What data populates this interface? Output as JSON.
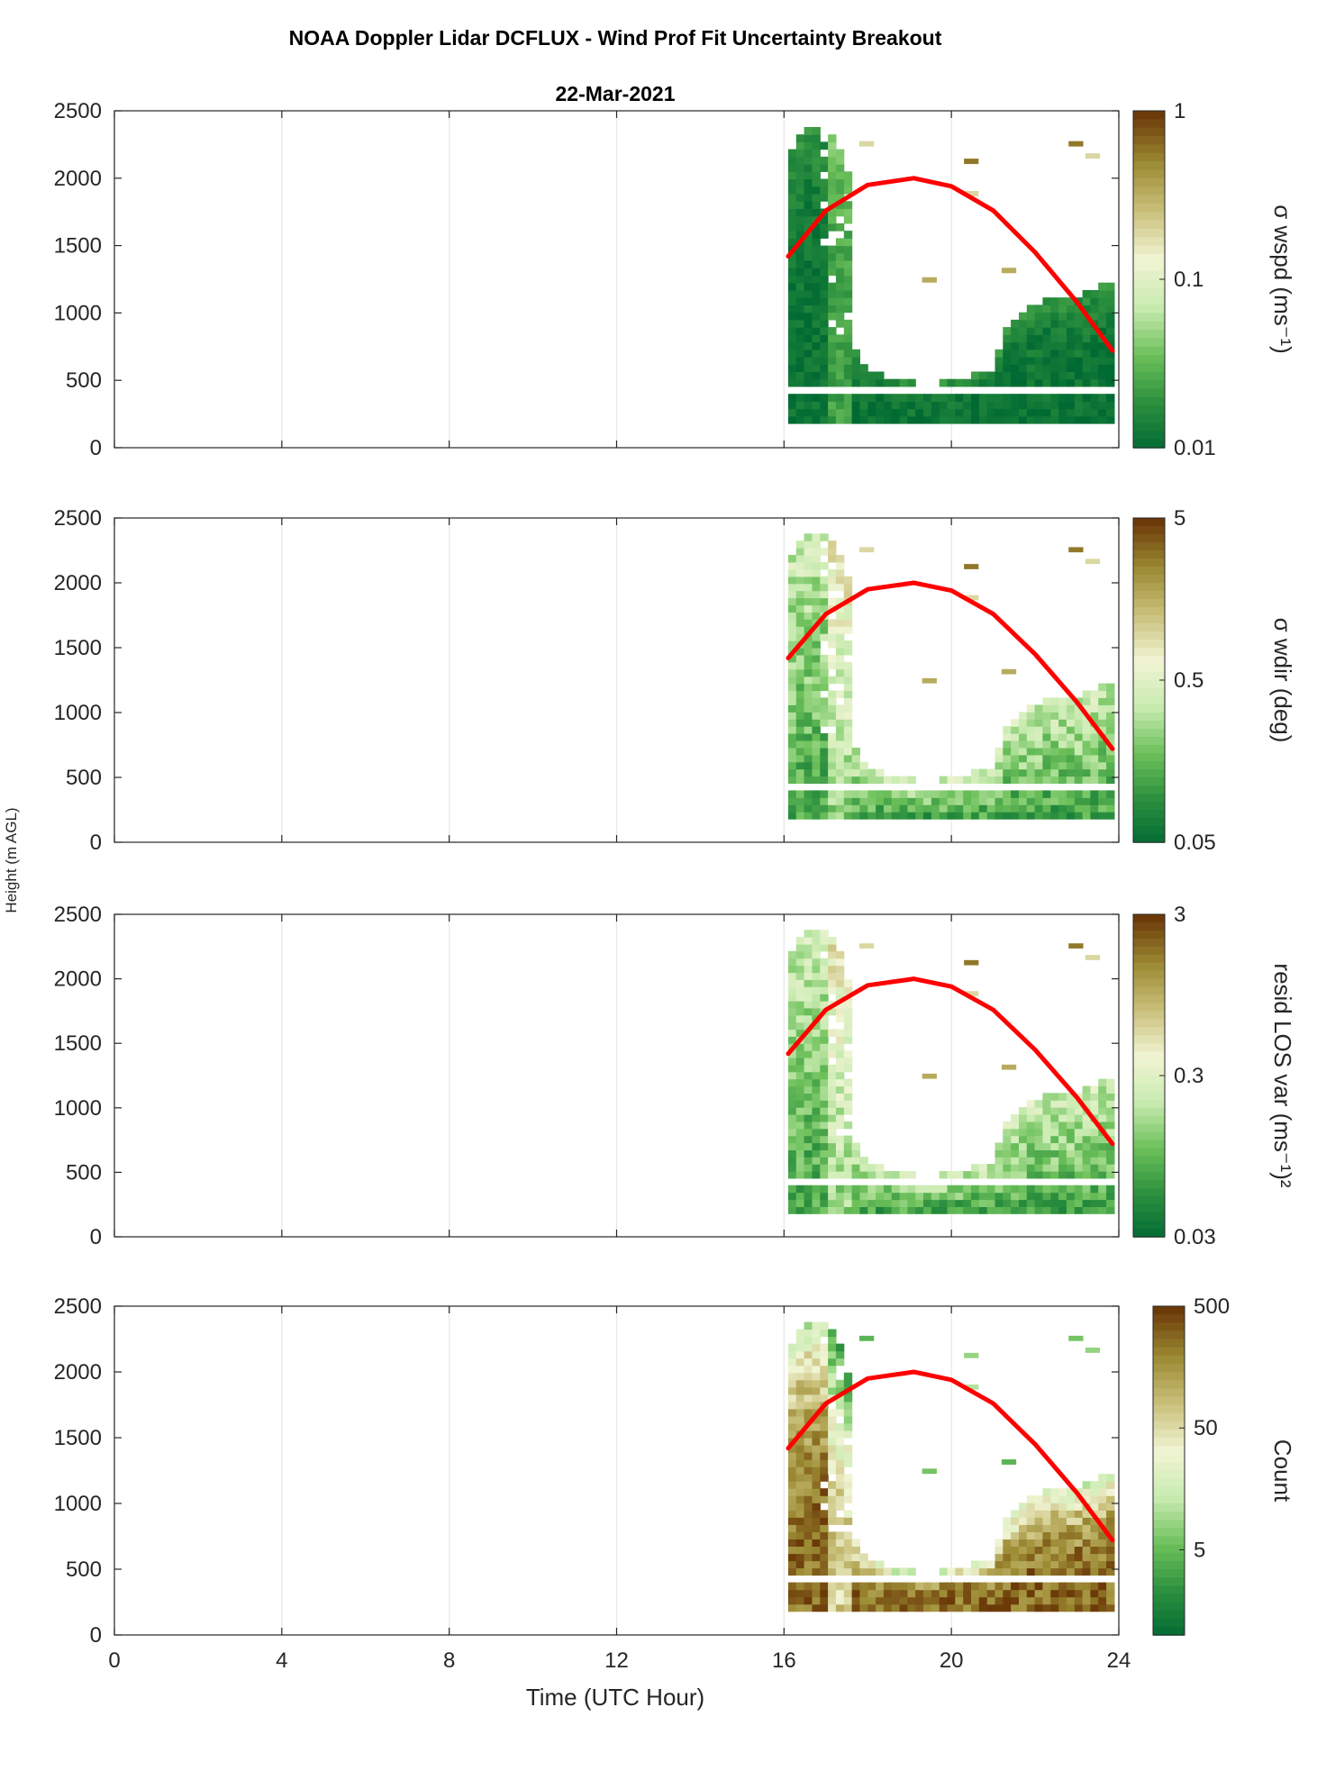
{
  "figure": {
    "title": "NOAA Doppler Lidar DCFLUX - Wind Prof Fit Uncertainty Breakout",
    "date": "22-Mar-2021",
    "ylabel": "Height (m AGL)",
    "xlabel": "Time (UTC Hour)"
  },
  "chart_data": [
    {
      "type": "heatmap",
      "name": "sigma-wspd",
      "colorbar_label": "σ wspd (ms⁻¹)",
      "colorbar_ticks": [
        "0.01",
        "0.1",
        "1"
      ],
      "colorbar_scale": "log",
      "colorbar_range": [
        0.01,
        1
      ],
      "x_ticks": [
        "0",
        "4",
        "8",
        "12",
        "16",
        "20",
        "24"
      ],
      "y_ticks": [
        "0",
        "500",
        "1000",
        "1500",
        "2000",
        "2500"
      ],
      "xlim": [
        0,
        24
      ],
      "ylim": [
        0,
        2500
      ],
      "value_profile": "low",
      "grid": true
    },
    {
      "type": "heatmap",
      "name": "sigma-wdir",
      "colorbar_label": "σ wdir (deg)",
      "colorbar_ticks": [
        "0.05",
        "0.5",
        "5"
      ],
      "colorbar_scale": "log",
      "colorbar_range": [
        0.05,
        5
      ],
      "x_ticks": [
        "0",
        "4",
        "8",
        "12",
        "16",
        "20",
        "24"
      ],
      "y_ticks": [
        "0",
        "500",
        "1000",
        "1500",
        "2000",
        "2500"
      ],
      "xlim": [
        0,
        24
      ],
      "ylim": [
        0,
        2500
      ],
      "value_profile": "mid",
      "grid": true
    },
    {
      "type": "heatmap",
      "name": "resid-los-var",
      "colorbar_label": "resid LOS var (ms⁻¹)²",
      "colorbar_ticks": [
        "0.03",
        "0.3",
        "3"
      ],
      "colorbar_scale": "log",
      "colorbar_range": [
        0.03,
        3
      ],
      "x_ticks": [
        "0",
        "4",
        "8",
        "12",
        "16",
        "20",
        "24"
      ],
      "y_ticks": [
        "0",
        "500",
        "1000",
        "1500",
        "2000",
        "2500"
      ],
      "xlim": [
        0,
        24
      ],
      "ylim": [
        0,
        2500
      ],
      "value_profile": "mid",
      "grid": true
    },
    {
      "type": "heatmap",
      "name": "count",
      "colorbar_label": "Count",
      "colorbar_ticks": [
        "5",
        "50",
        "500"
      ],
      "colorbar_scale": "log",
      "colorbar_range": [
        1,
        500
      ],
      "x_ticks": [
        "0",
        "4",
        "8",
        "12",
        "16",
        "20",
        "24"
      ],
      "y_ticks": [
        "0",
        "500",
        "1000",
        "1500",
        "2000",
        "2500"
      ],
      "xlim": [
        0,
        24
      ],
      "ylim": [
        0,
        2500
      ],
      "value_profile": "high",
      "grid": true
    }
  ],
  "overlay_curve": {
    "color": "#ff0000",
    "x": [
      16.1,
      17.0,
      18.0,
      19.1,
      20.0,
      21.0,
      22.0,
      23.0,
      23.85
    ],
    "y": [
      1420,
      1760,
      1950,
      2000,
      1940,
      1760,
      1450,
      1080,
      720
    ]
  },
  "data_coverage": {
    "start_hour": 16.1,
    "end_hour": 23.9,
    "top_height_by_hour": [
      [
        16.1,
        2150
      ],
      [
        16.5,
        2380
      ],
      [
        17.0,
        2380
      ],
      [
        17.4,
        2120
      ],
      [
        17.6,
        1950
      ],
      [
        17.7,
        700
      ],
      [
        18.0,
        580
      ],
      [
        18.5,
        470
      ],
      [
        19.0,
        470
      ],
      [
        19.5,
        430
      ],
      [
        20.0,
        480
      ],
      [
        20.6,
        520
      ],
      [
        21.0,
        560
      ],
      [
        21.3,
        850
      ],
      [
        21.8,
        1000
      ],
      [
        22.3,
        1100
      ],
      [
        22.8,
        1080
      ],
      [
        23.3,
        1150
      ],
      [
        23.85,
        1220
      ]
    ],
    "gap_heights": [
      440,
      240
    ],
    "bottom_height": 180,
    "scattered_cells": [
      [
        17.8,
        2250
      ],
      [
        19.3,
        1240
      ],
      [
        20.3,
        2120
      ],
      [
        20.3,
        1880
      ],
      [
        21.2,
        1310
      ],
      [
        22.8,
        2250
      ],
      [
        23.2,
        2160
      ]
    ]
  },
  "colormap": [
    "#006a33",
    "#2b8f3e",
    "#6cc05a",
    "#c8ebb0",
    "#f1f4d4",
    "#c9c07a",
    "#9c8a33",
    "#6b3a08"
  ]
}
